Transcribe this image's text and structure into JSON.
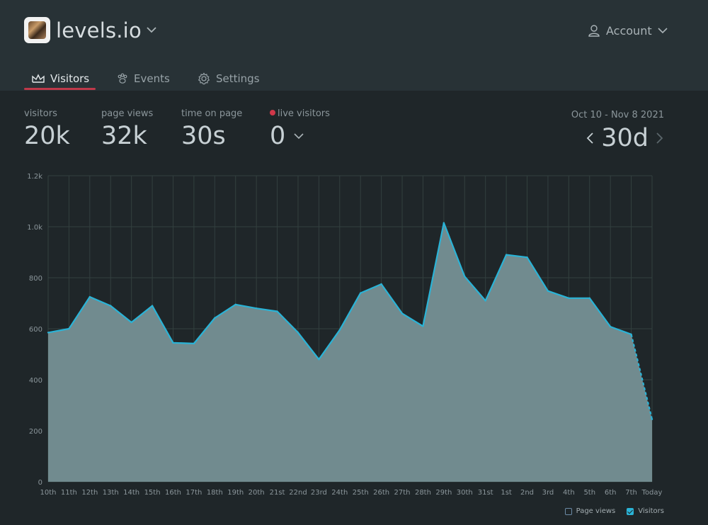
{
  "site": {
    "name": "levels.io",
    "avatar_icon": "profile-photo"
  },
  "account": {
    "label": "Account"
  },
  "tabs": [
    {
      "label": "Visitors",
      "icon": "crown-chart-icon",
      "active": true
    },
    {
      "label": "Events",
      "icon": "paw-icon",
      "active": false
    },
    {
      "label": "Settings",
      "icon": "gear-icon",
      "active": false
    }
  ],
  "stats": {
    "visitors": {
      "label": "visitors",
      "value": "20k"
    },
    "page_views": {
      "label": "page views",
      "value": "32k"
    },
    "time_on_page": {
      "label": "time on page",
      "value": "30s"
    },
    "live_visitors": {
      "label": "live visitors",
      "value": "0"
    }
  },
  "date_range": "Oct 10 - Nov 8 2021",
  "period": "30d",
  "legend": {
    "page_views": "Page views",
    "visitors": "Visitors"
  },
  "colors": {
    "accent": "#2ab3d6",
    "fill": "#718b8f",
    "live_dot": "#d0384a",
    "tab_underline": "#c0394a"
  },
  "chart_data": {
    "type": "area",
    "x": [
      "10th",
      "11th",
      "12th",
      "13th",
      "14th",
      "15th",
      "16th",
      "17th",
      "18th",
      "19th",
      "20th",
      "21st",
      "22nd",
      "23rd",
      "24th",
      "25th",
      "26th",
      "27th",
      "28th",
      "29th",
      "30th",
      "31st",
      "1st",
      "2nd",
      "3rd",
      "4th",
      "5th",
      "6th",
      "7th",
      "Today"
    ],
    "series": [
      {
        "name": "Visitors",
        "values": [
          585,
          600,
          725,
          690,
          625,
          690,
          545,
          542,
          642,
          695,
          680,
          668,
          585,
          480,
          595,
          740,
          775,
          660,
          610,
          1015,
          805,
          710,
          890,
          880,
          748,
          720,
          720,
          608,
          578,
          245
        ]
      }
    ],
    "ylim": [
      0,
      1200
    ],
    "yticks": [
      0,
      200,
      400,
      600,
      800,
      1000,
      1200
    ],
    "ytick_labels": [
      "0",
      "200",
      "400",
      "600",
      "800",
      "1.0k",
      "1.2k"
    ],
    "grid": true,
    "last_segment_dashed": true,
    "legend_position": "bottom-right"
  }
}
